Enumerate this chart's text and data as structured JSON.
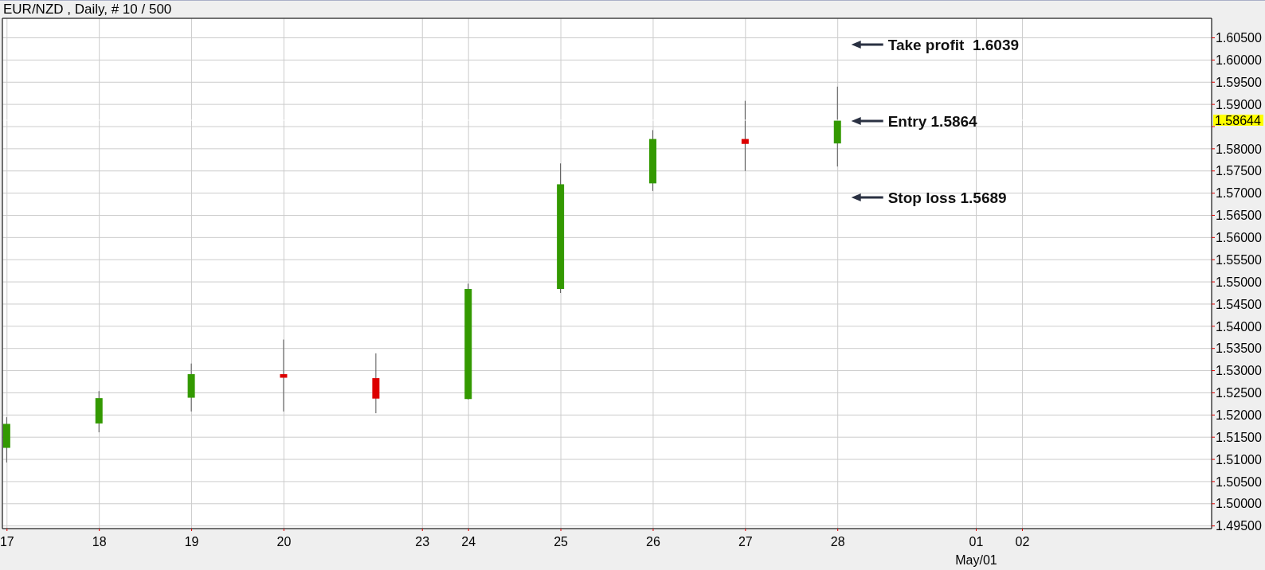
{
  "chart_data": {
    "type": "candlestick",
    "title": "EUR/NZD , Daily, # 10 / 500",
    "categories": [
      "17",
      null,
      "18",
      null,
      "19",
      null,
      "20",
      null,
      null,
      "23",
      "24",
      null,
      "25",
      null,
      "26",
      null,
      "27",
      null,
      "28",
      null,
      null,
      "01\nMay/01",
      "02",
      null,
      null,
      null,
      null
    ],
    "ohlc": [
      [
        1.5126,
        1.5195,
        1.5093,
        1.518
      ],
      null,
      [
        1.5181,
        1.5254,
        1.5161,
        1.5238
      ],
      null,
      [
        1.5239,
        1.5316,
        1.5208,
        1.5292
      ],
      null,
      [
        1.5292,
        1.537,
        1.5208,
        1.5284
      ],
      null,
      [
        1.5283,
        1.5339,
        1.5204,
        1.5237
      ],
      null,
      [
        1.5236,
        1.5496,
        1.5235,
        1.5484
      ],
      null,
      [
        1.5484,
        1.5767,
        1.5475,
        1.572
      ],
      null,
      [
        1.5722,
        1.5842,
        1.5705,
        1.5822
      ],
      null,
      [
        1.5822,
        1.5908,
        1.575,
        1.5811
      ],
      null,
      [
        1.5812,
        1.594,
        1.576,
        1.5864
      ],
      null,
      null,
      null,
      null,
      null,
      null,
      null,
      null
    ],
    "colors": [
      "#339900",
      null,
      "#339900",
      null,
      "#339900",
      null,
      "#dd0000",
      null,
      "#dd0000",
      null,
      "#339900",
      null,
      "#339900",
      null,
      "#339900",
      null,
      "#dd0000",
      null,
      "#339900",
      null,
      null,
      null,
      null,
      null,
      null,
      null,
      null
    ],
    "ylim": [
      1.4944,
      1.6094
    ],
    "yticks": [
      {
        "value": 1.495,
        "label": "1.49500"
      },
      {
        "value": 1.5,
        "label": "1.50000"
      },
      {
        "value": 1.505,
        "label": "1.50500"
      },
      {
        "value": 1.51,
        "label": "1.51000"
      },
      {
        "value": 1.515,
        "label": "1.51500"
      },
      {
        "value": 1.52,
        "label": "1.52000"
      },
      {
        "value": 1.525,
        "label": "1.52500"
      },
      {
        "value": 1.53,
        "label": "1.53000"
      },
      {
        "value": 1.535,
        "label": "1.53500"
      },
      {
        "value": 1.54,
        "label": "1.54000"
      },
      {
        "value": 1.545,
        "label": "1.54500"
      },
      {
        "value": 1.55,
        "label": "1.55000"
      },
      {
        "value": 1.555,
        "label": "1.55500"
      },
      {
        "value": 1.56,
        "label": "1.56000"
      },
      {
        "value": 1.565,
        "label": "1.56500"
      },
      {
        "value": 1.57,
        "label": "1.57000"
      },
      {
        "value": 1.575,
        "label": "1.57500"
      },
      {
        "value": 1.58,
        "label": "1.58000"
      },
      {
        "value": 1.585,
        "label": null
      },
      {
        "value": 1.59,
        "label": "1.59000"
      },
      {
        "value": 1.595,
        "label": "1.59500"
      },
      {
        "value": 1.6,
        "label": "1.60000"
      },
      {
        "value": 1.605,
        "label": "1.60500"
      }
    ],
    "grid": true,
    "ref_lines": [
      {
        "axis": "y",
        "value": 1.58644,
        "label": "1.58644",
        "color": "#ffffff"
      }
    ],
    "annotations": [
      "Take profit  1.6039",
      "Entry 1.5864",
      "Stop loss 1.5689"
    ]
  }
}
